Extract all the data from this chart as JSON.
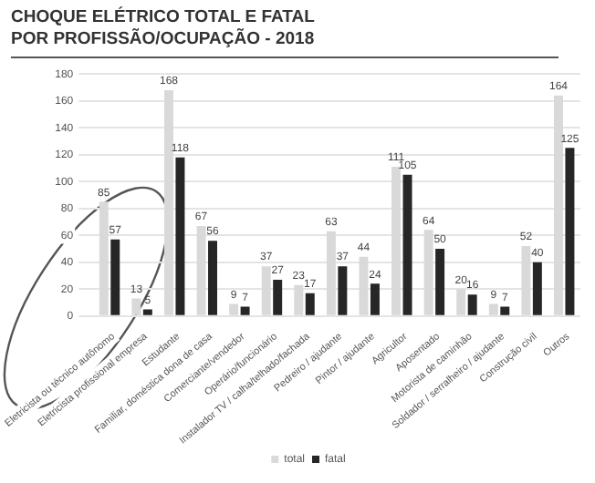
{
  "chart_data": {
    "type": "bar",
    "title": "CHOQUE ELÉTRICO TOTAL E FATAL\nPOR PROFISSÃO/OCUPAÇÃO - 2018",
    "categories": [
      "Eletricista ou técnico autônomo",
      "Eletricista profissional empresa",
      "Estudante",
      "Familiar, doméstica dona de casa",
      "Comerciante/vendedor",
      "Operário/funcionário",
      "Instalador TV / calha/telhado/fachada",
      "Pedreiro / ajudante",
      "Pintor / ajudante",
      "Agricultor",
      "Aposentado",
      "Motorista de caminhão",
      "Soldador / serralheiro / ajudante",
      "Construção civil",
      "Outros"
    ],
    "series": [
      {
        "name": "total",
        "color": "#d9d9d9",
        "values": [
          85,
          13,
          168,
          67,
          9,
          37,
          23,
          63,
          44,
          111,
          64,
          20,
          9,
          52,
          164
        ]
      },
      {
        "name": "fatal",
        "color": "#262626",
        "values": [
          57,
          5,
          118,
          56,
          7,
          27,
          17,
          37,
          24,
          105,
          50,
          16,
          7,
          40,
          125
        ]
      }
    ],
    "ylim": [
      0,
      180
    ],
    "yticks": [
      0,
      20,
      40,
      60,
      80,
      100,
      120,
      140,
      160,
      180
    ],
    "grid": "y",
    "legend": "bottom",
    "data_labels": true
  }
}
